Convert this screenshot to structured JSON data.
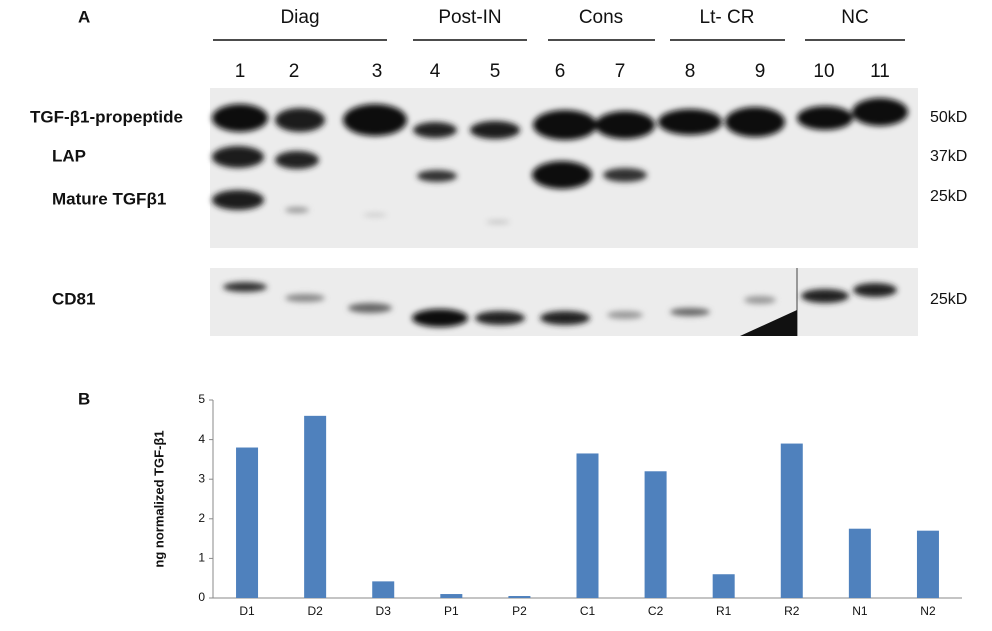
{
  "blot": {
    "panel_label": "A",
    "groups": [
      "Diag",
      "Post-IN",
      "Cons",
      "Lt- CR",
      "NC"
    ],
    "lanes": [
      "1",
      "2",
      "3",
      "4",
      "5",
      "6",
      "7",
      "8",
      "9",
      "10",
      "11"
    ],
    "rows": [
      "TGF-β1-propeptide",
      "LAP",
      "Mature TGFβ1",
      "CD81"
    ],
    "sizes": [
      "50kD",
      "37kD",
      "25kD",
      "25kD"
    ]
  },
  "chart_data": {
    "type": "bar",
    "panel_label": "B",
    "y_label": "ng normalized TGF-β1",
    "categories": [
      "D1",
      "D2",
      "D3",
      "P1",
      "P2",
      "C1",
      "C2",
      "R1",
      "R2",
      "N1",
      "N2"
    ],
    "values": [
      3.8,
      4.6,
      0.42,
      0.1,
      0.05,
      3.65,
      3.2,
      0.6,
      3.9,
      1.75,
      1.7
    ],
    "color": "#4f81bd",
    "ylim": [
      0,
      5
    ],
    "yticks": [
      0,
      1,
      2,
      3,
      4,
      5
    ],
    "grid": false
  }
}
